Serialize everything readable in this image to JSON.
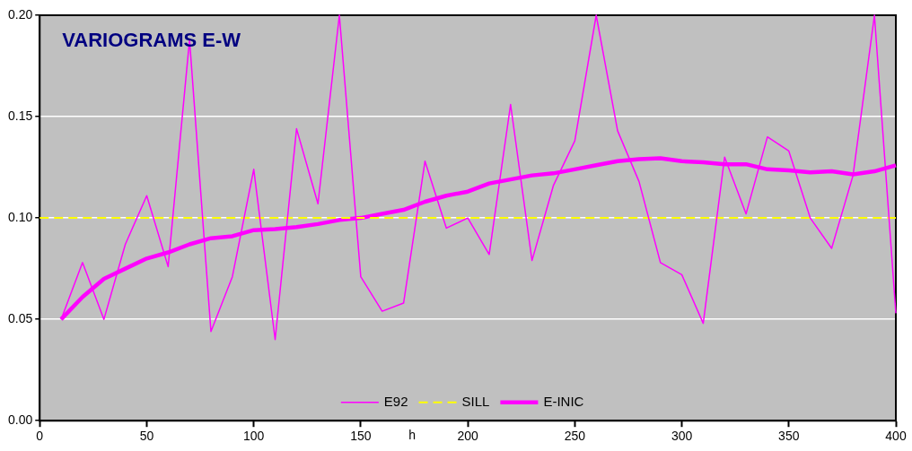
{
  "chart_data": {
    "type": "line",
    "title": "VARIOGRAMS E-W",
    "xlabel": "h",
    "x": [
      10,
      20,
      30,
      40,
      50,
      60,
      70,
      80,
      90,
      100,
      110,
      120,
      130,
      140,
      150,
      160,
      170,
      180,
      190,
      200,
      210,
      220,
      230,
      240,
      250,
      260,
      270,
      280,
      290,
      300,
      310,
      320,
      330,
      340,
      350,
      360,
      370,
      380,
      390,
      400
    ],
    "series": [
      {
        "name": "E92",
        "color": "#ff00ff",
        "line_style": "solid",
        "values": [
          0.05,
          0.078,
          0.05,
          0.087,
          0.111,
          0.076,
          0.188,
          0.044,
          0.071,
          0.124,
          0.04,
          0.144,
          0.107,
          0.2,
          0.071,
          0.054,
          0.058,
          0.128,
          0.095,
          0.1,
          0.082,
          0.156,
          0.079,
          0.116,
          0.138,
          0.2,
          0.143,
          0.118,
          0.078,
          0.072,
          0.048,
          0.13,
          0.102,
          0.14,
          0.133,
          0.1,
          0.085,
          0.121,
          0.2,
          0.053
        ]
      },
      {
        "name": "SILL",
        "color": "#ffff00",
        "line_style": "dashed",
        "x": [
          0,
          400
        ],
        "values": [
          0.1,
          0.1
        ]
      },
      {
        "name": "E-INIC",
        "color": "#ff00ff",
        "line_style": "solid",
        "values": [
          0.05,
          0.061,
          0.07,
          0.075,
          0.08,
          0.083,
          0.087,
          0.09,
          0.091,
          0.094,
          0.0945,
          0.0955,
          0.097,
          0.099,
          0.1,
          0.102,
          0.104,
          0.108,
          0.111,
          0.113,
          0.117,
          0.119,
          0.121,
          0.122,
          0.124,
          0.126,
          0.128,
          0.129,
          0.1295,
          0.128,
          0.1275,
          0.1265,
          0.1265,
          0.124,
          0.1235,
          0.1225,
          0.123,
          0.1215,
          0.123,
          0.126
        ]
      }
    ],
    "xlim": [
      0,
      400
    ],
    "xticks": [
      0,
      50,
      100,
      150,
      200,
      250,
      300,
      350,
      400
    ],
    "ylim": [
      0,
      0.2
    ],
    "yticks": [
      {
        "value": 0,
        "label": "0.00"
      },
      {
        "value": 0.05,
        "label": "0.05"
      },
      {
        "value": 0.1,
        "label": "0.10"
      },
      {
        "value": 0.15,
        "label": "0.15"
      },
      {
        "value": 0.2,
        "label": "0.20"
      }
    ],
    "grid": "y",
    "legend": "bottom",
    "marker": "none"
  }
}
